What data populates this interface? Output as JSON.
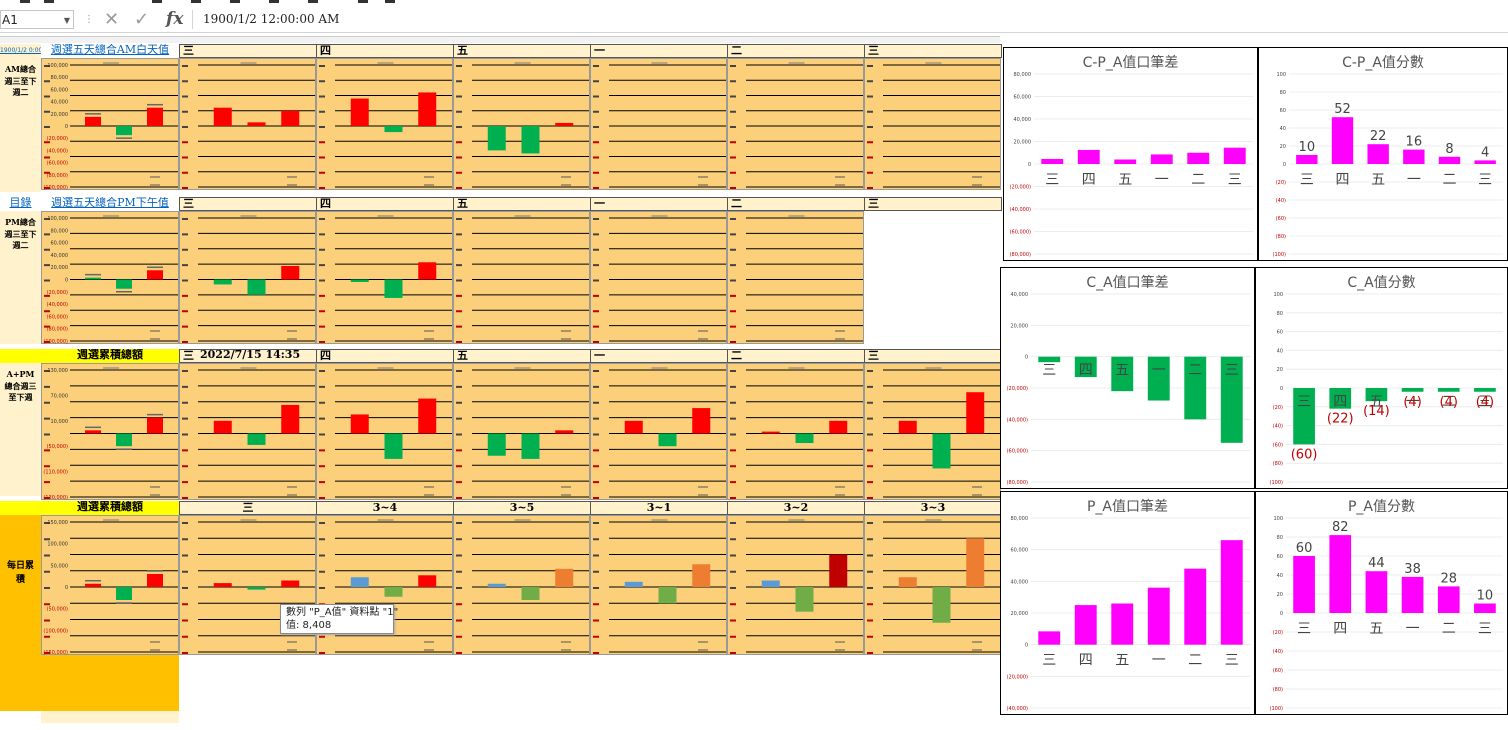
{
  "formula_bar": {
    "cell_ref": "A1",
    "formula": "1900/1/2  12:00:00 AM"
  },
  "colors": {
    "header_bg": "#fff2cc",
    "chart_bg": "#fcd07a",
    "red": "#ff0000",
    "green": "#00b050",
    "magenta": "#ff00ff",
    "yellow": "#ffff00",
    "orange": "#ffc000"
  },
  "icons": {
    "cancel": "close-icon",
    "confirm": "check-icon",
    "function": "fx-icon"
  },
  "rows": [
    {
      "link": "週選五天總合AM白天值",
      "side_label": "AM總合週三至下週二",
      "tabs": [
        "三",
        "四",
        "五",
        "一",
        "二",
        "三"
      ],
      "summary_axis": [
        "100,000",
        "80,000",
        "60,000",
        "40,000",
        "20,000",
        "0",
        "(20,000)",
        "(40,000)",
        "(60,000)",
        "(80,000)",
        "(100,000)"
      ]
    },
    {
      "link": "週選五天總合PM下午值",
      "side_label": "PM總合週三至下週二",
      "tabs": [
        "三",
        "四",
        "五",
        "一",
        "二",
        "三"
      ],
      "summary_axis": [
        "100,000",
        "80,000",
        "60,000",
        "40,000",
        "20,000",
        "0",
        "(20,000)",
        "(40,000)",
        "(60,000)",
        "(80,000)",
        "(100,000)"
      ]
    },
    {
      "link": "週選累積總額",
      "side_label": "A+PM總合週三至下週",
      "tabs": [
        "三",
        "四",
        "五",
        "一",
        "二",
        "三"
      ],
      "timestamp": "2022/7/15 14:35",
      "summary_axis": [
        "130,000",
        "70,000",
        "10,000",
        "(50,000)",
        "(110,000)",
        "(130,000)"
      ]
    },
    {
      "link": "週選累積總額",
      "side_label": "每日累積",
      "tabs": [
        "三",
        "3~4",
        "3~5",
        "3~1",
        "3~2",
        "3~3"
      ],
      "summary_axis": [
        "150,000",
        "100,000",
        "50,000",
        "0",
        "(50,000)",
        "(100,000)",
        "(150,000)"
      ]
    }
  ],
  "corner_cell": "1900/1/2 0:00",
  "corner_link": "目錄",
  "tooltip": {
    "line1": "數列 \"P_A值\" 資料點 \"1\"",
    "line2": "值: 8,408"
  },
  "right_charts": [
    {
      "title": "C-P_A值口筆差",
      "type": "bar",
      "categories": [
        "三",
        "四",
        "五",
        "一",
        "二",
        "三"
      ],
      "values": [
        4500,
        12500,
        4000,
        8500,
        10000,
        14500
      ],
      "ylim": [
        -80000,
        80000
      ],
      "y_ticks": [
        "80,000",
        "60,000",
        "40,000",
        "20,000",
        "0",
        "(20,000)",
        "(40,000)",
        "(60,000)",
        "(80,000)"
      ],
      "bar_color": "#ff00ff"
    },
    {
      "title": "C-P_A值分數",
      "type": "bar",
      "categories": [
        "三",
        "四",
        "五",
        "一",
        "二",
        "三"
      ],
      "values": [
        10,
        52,
        22,
        16,
        8,
        4
      ],
      "data_labels": [
        "10",
        "52",
        "22",
        "16",
        "8",
        "4"
      ],
      "ylim": [
        -100,
        100
      ],
      "y_ticks": [
        "100",
        "80",
        "60",
        "40",
        "20",
        "0",
        "(20)",
        "(40)",
        "(60)",
        "(80)",
        "(100)"
      ],
      "bar_color": "#ff00ff"
    },
    {
      "title": "C_A值口筆差",
      "type": "bar",
      "categories": [
        "三",
        "四",
        "五",
        "一",
        "二",
        "三"
      ],
      "values": [
        -3500,
        -13000,
        -22000,
        -28000,
        -40000,
        -55000
      ],
      "ylim": [
        -80000,
        40000
      ],
      "y_ticks": [
        "40,000",
        "20,000",
        "0",
        "(20,000)",
        "(40,000)",
        "(60,000)",
        "(80,000)"
      ],
      "bar_color": "#00b050"
    },
    {
      "title": "C_A值分數",
      "type": "bar",
      "categories": [
        "三",
        "四",
        "五",
        "一",
        "二",
        "三"
      ],
      "values": [
        -60,
        -22,
        -14,
        -4,
        -4,
        -4
      ],
      "data_labels": [
        "(60)",
        "(22)",
        "(14)",
        "(4)",
        "(4)",
        "(4)"
      ],
      "ylim": [
        -100,
        100
      ],
      "y_ticks": [
        "100",
        "80",
        "60",
        "40",
        "20",
        "0",
        "(20)",
        "(40)",
        "(60)",
        "(80)",
        "(100)"
      ],
      "bar_color": "#00b050",
      "label_color": "#c00000"
    },
    {
      "title": "P_A值口筆差",
      "type": "bar",
      "categories": [
        "三",
        "四",
        "五",
        "一",
        "二",
        "三"
      ],
      "values": [
        8408,
        25000,
        26000,
        36000,
        48000,
        66000
      ],
      "ylim": [
        -40000,
        80000
      ],
      "y_ticks": [
        "80,000",
        "60,000",
        "40,000",
        "20,000",
        "0",
        "(20,000)",
        "(40,000)"
      ],
      "bar_color": "#ff00ff"
    },
    {
      "title": "P_A值分數",
      "type": "bar",
      "categories": [
        "三",
        "四",
        "五",
        "一",
        "二",
        "三"
      ],
      "values": [
        60,
        82,
        44,
        38,
        28,
        10
      ],
      "data_labels": [
        "60",
        "82",
        "44",
        "38",
        "28",
        "10"
      ],
      "ylim": [
        -100,
        100
      ],
      "y_ticks": [
        "100",
        "80",
        "60",
        "40",
        "20",
        "0",
        "(20)",
        "(40)",
        "(60)",
        "(80)",
        "(100)"
      ],
      "bar_color": "#ff00ff"
    }
  ],
  "chart_data": [
    {
      "type": "bar",
      "title": "",
      "categories": [
        "三",
        "四",
        "五",
        "一",
        "二",
        "三"
      ],
      "values": [
        4500,
        12500,
        4000,
        8500,
        10000,
        14500
      ],
      "ylim": [
        -80000,
        80000
      ]
    },
    {
      "type": "bar",
      "title": "",
      "categories": [
        "三",
        "四",
        "五",
        "一",
        "二",
        "三"
      ],
      "values": [
        10,
        52,
        22,
        16,
        8,
        4
      ],
      "ylim": [
        -100,
        100
      ]
    },
    {
      "type": "bar",
      "title": "",
      "categories": [
        "三",
        "四",
        "五",
        "一",
        "二",
        "三"
      ],
      "values": [
        -3500,
        -13000,
        -22000,
        -28000,
        -40000,
        -55000
      ],
      "ylim": [
        -80000,
        40000
      ]
    },
    {
      "type": "bar",
      "title": "",
      "categories": [
        "三",
        "四",
        "五",
        "一",
        "二",
        "三"
      ],
      "values": [
        -60,
        -22,
        -14,
        -4,
        -4,
        -4
      ],
      "ylim": [
        -100,
        100
      ]
    },
    {
      "type": "bar",
      "title": "",
      "categories": [
        "三",
        "四",
        "五",
        "一",
        "二",
        "三"
      ],
      "values": [
        8408,
        25000,
        26000,
        36000,
        48000,
        66000
      ],
      "ylim": [
        -40000,
        80000
      ]
    },
    {
      "type": "bar",
      "title": "",
      "categories": [
        "三",
        "四",
        "五",
        "一",
        "二",
        "三"
      ],
      "values": [
        60,
        82,
        44,
        38,
        28,
        10
      ],
      "ylim": [
        -100,
        100
      ]
    }
  ],
  "mini_charts": [
    [
      {
        "bars": [
          {
            "v": 0.15,
            "c": "#ff0000"
          },
          {
            "v": -0.15,
            "c": "#00b050"
          },
          {
            "v": 0.3,
            "c": "#ff0000"
          }
        ]
      },
      {
        "bars": [
          {
            "v": 0.3,
            "c": "#ff0000"
          },
          {
            "v": 0.06,
            "c": "#ff0000"
          },
          {
            "v": 0.25,
            "c": "#ff0000"
          }
        ]
      },
      {
        "bars": [
          {
            "v": 0.45,
            "c": "#ff0000"
          },
          {
            "v": -0.1,
            "c": "#00b050"
          },
          {
            "v": 0.55,
            "c": "#ff0000"
          }
        ]
      },
      {
        "bars": [
          {
            "v": -0.4,
            "c": "#00b050"
          },
          {
            "v": -0.45,
            "c": "#00b050"
          },
          {
            "v": 0.05,
            "c": "#ff0000"
          }
        ]
      },
      {
        "bars": []
      },
      {
        "bars": []
      },
      {
        "bars": []
      }
    ],
    [
      {
        "bars": [
          {
            "v": 0.03,
            "c": "#00b050"
          },
          {
            "v": -0.15,
            "c": "#00b050"
          },
          {
            "v": 0.15,
            "c": "#ff0000"
          }
        ]
      },
      {
        "bars": [
          {
            "v": -0.08,
            "c": "#00b050"
          },
          {
            "v": -0.25,
            "c": "#00b050"
          },
          {
            "v": 0.22,
            "c": "#ff0000"
          }
        ]
      },
      {
        "bars": [
          {
            "v": -0.04,
            "c": "#00b050"
          },
          {
            "v": -0.3,
            "c": "#00b050"
          },
          {
            "v": 0.28,
            "c": "#ff0000"
          }
        ]
      },
      {
        "bars": []
      },
      {
        "bars": []
      },
      {
        "bars": []
      }
    ],
    [
      {
        "bars": [
          {
            "v": 0.05,
            "c": "#ff0000"
          },
          {
            "v": -0.2,
            "c": "#00b050"
          },
          {
            "v": 0.25,
            "c": "#ff0000"
          }
        ]
      },
      {
        "bars": [
          {
            "v": 0.2,
            "c": "#ff0000"
          },
          {
            "v": -0.18,
            "c": "#00b050"
          },
          {
            "v": 0.45,
            "c": "#ff0000"
          }
        ]
      },
      {
        "bars": [
          {
            "v": 0.3,
            "c": "#ff0000"
          },
          {
            "v": -0.4,
            "c": "#00b050"
          },
          {
            "v": 0.55,
            "c": "#ff0000"
          }
        ]
      },
      {
        "bars": [
          {
            "v": -0.35,
            "c": "#00b050"
          },
          {
            "v": -0.4,
            "c": "#00b050"
          },
          {
            "v": 0.05,
            "c": "#ff0000"
          }
        ]
      },
      {
        "bars": [
          {
            "v": 0.2,
            "c": "#ff0000"
          },
          {
            "v": -0.2,
            "c": "#00b050"
          },
          {
            "v": 0.4,
            "c": "#ff0000"
          }
        ]
      },
      {
        "bars": [
          {
            "v": 0.03,
            "c": "#ff0000"
          },
          {
            "v": -0.15,
            "c": "#00b050"
          },
          {
            "v": 0.2,
            "c": "#ff0000"
          }
        ]
      },
      {
        "bars": [
          {
            "v": 0.2,
            "c": "#ff0000"
          },
          {
            "v": -0.55,
            "c": "#00b050"
          },
          {
            "v": 0.65,
            "c": "#ff0000"
          }
        ]
      }
    ],
    [
      {
        "bars": [
          {
            "v": 0.05,
            "c": "#ff0000"
          },
          {
            "v": -0.2,
            "c": "#00b050"
          },
          {
            "v": 0.2,
            "c": "#ff0000"
          }
        ]
      },
      {
        "bars": [
          {
            "v": 0.06,
            "c": "#ff0000"
          },
          {
            "v": -0.04,
            "c": "#00b050"
          },
          {
            "v": 0.1,
            "c": "#ff0000"
          }
        ]
      },
      {
        "bars": [
          {
            "v": 0.15,
            "c": "#5b9bd5"
          },
          {
            "v": -0.15,
            "c": "#70ad47"
          },
          {
            "v": 0.18,
            "c": "#ff0000"
          }
        ]
      },
      {
        "bars": [
          {
            "v": 0.05,
            "c": "#5b9bd5"
          },
          {
            "v": -0.2,
            "c": "#70ad47"
          },
          {
            "v": 0.28,
            "c": "#ed7d31"
          }
        ]
      },
      {
        "bars": [
          {
            "v": 0.08,
            "c": "#5b9bd5"
          },
          {
            "v": -0.25,
            "c": "#70ad47"
          },
          {
            "v": 0.35,
            "c": "#ed7d31"
          }
        ]
      },
      {
        "bars": [
          {
            "v": 0.1,
            "c": "#5b9bd5"
          },
          {
            "v": -0.38,
            "c": "#70ad47"
          },
          {
            "v": 0.5,
            "c": "#c00000"
          }
        ]
      },
      {
        "bars": [
          {
            "v": 0.15,
            "c": "#ed7d31"
          },
          {
            "v": -0.55,
            "c": "#70ad47"
          },
          {
            "v": 0.75,
            "c": "#ed7d31"
          }
        ]
      }
    ]
  ]
}
